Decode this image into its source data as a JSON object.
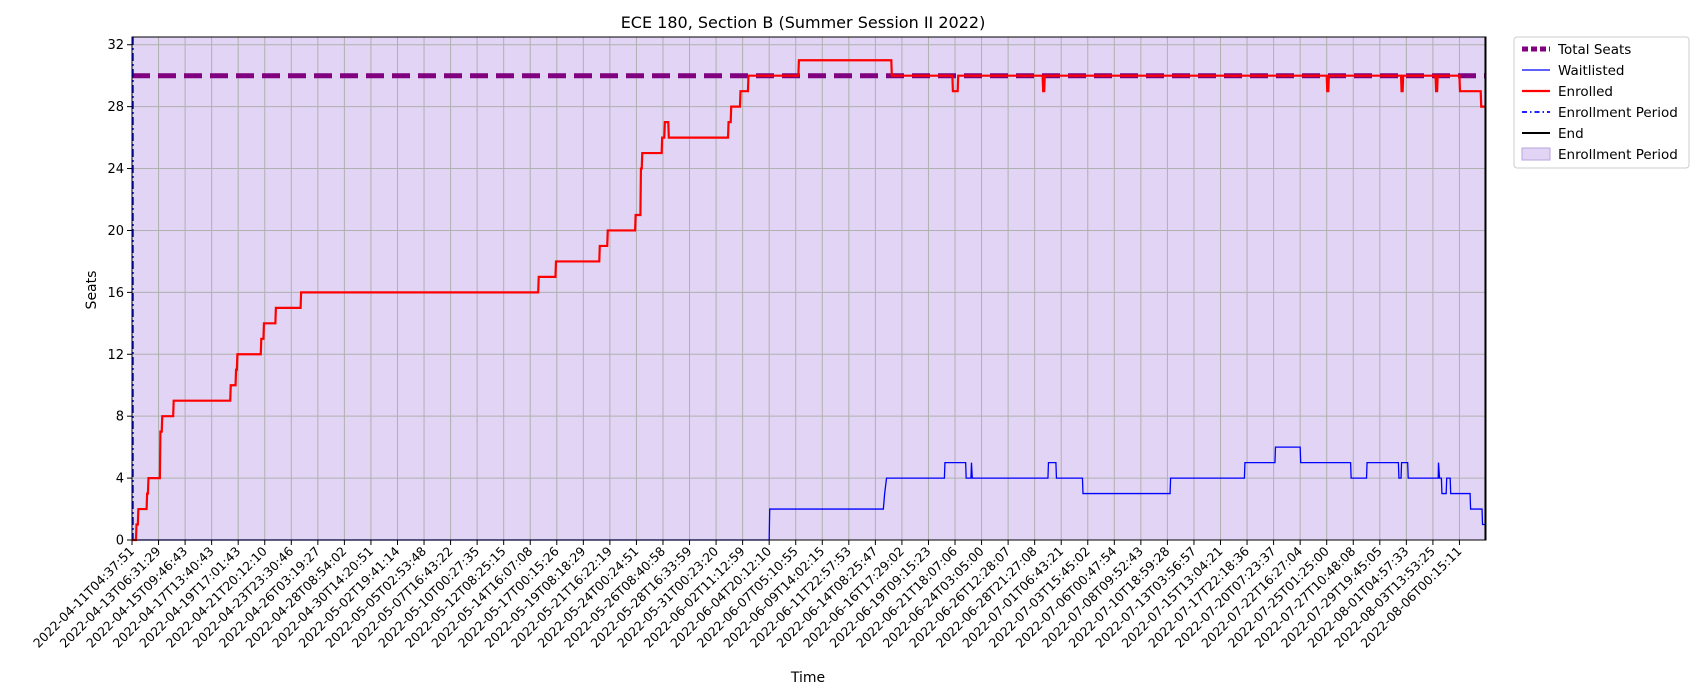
{
  "chart_data": {
    "type": "line",
    "title": "ECE 180, Section B (Summer Session II 2022)",
    "xlabel": "Time",
    "ylabel": "Seats",
    "ylim": [
      0,
      32.5
    ],
    "yticks": [
      0,
      4,
      8,
      12,
      16,
      20,
      24,
      28,
      32
    ],
    "grid": true,
    "legend_position": "outside-top-right",
    "xticks": [
      "2022-04-11T04:37:51",
      "2022-04-13T06:31:29",
      "2022-04-15T09:46:43",
      "2022-04-17T13:40:43",
      "2022-04-19T17:01:43",
      "2022-04-21T20:12:10",
      "2022-04-23T23:30:46",
      "2022-04-26T03:19:27",
      "2022-04-28T08:54:02",
      "2022-04-30T14:20:51",
      "2022-05-02T19:41:14",
      "2022-05-05T02:53:48",
      "2022-05-07T16:43:22",
      "2022-05-10T00:27:35",
      "2022-05-12T08:25:15",
      "2022-05-14T16:07:08",
      "2022-05-17T00:15:26",
      "2022-05-19T08:18:29",
      "2022-05-21T16:22:19",
      "2022-05-24T00:24:51",
      "2022-05-26T08:40:58",
      "2022-05-28T16:33:59",
      "2022-05-31T00:23:20",
      "2022-06-02T11:12:59",
      "2022-06-04T20:12:10",
      "2022-06-07T05:10:55",
      "2022-06-09T14:02:15",
      "2022-06-11T22:57:53",
      "2022-06-14T08:25:47",
      "2022-06-16T17:29:02",
      "2022-06-19T09:15:23",
      "2022-06-21T18:07:06",
      "2022-06-24T03:05:00",
      "2022-06-26T12:28:07",
      "2022-06-28T21:27:08",
      "2022-07-01T06:43:21",
      "2022-07-03T15:45:02",
      "2022-07-06T00:47:54",
      "2022-07-08T09:52:43",
      "2022-07-10T18:59:28",
      "2022-07-13T03:56:57",
      "2022-07-15T13:04:21",
      "2022-07-17T22:18:36",
      "2022-07-20T07:23:37",
      "2022-07-22T16:27:04",
      "2022-07-25T01:25:00",
      "2022-07-27T10:48:08",
      "2022-07-29T19:45:05",
      "2022-08-01T04:57:33",
      "2022-08-03T13:53:25",
      "2022-08-06T00:15:11"
    ],
    "series": [
      {
        "name": "Total Seats",
        "style": "dashed",
        "color": "#800080",
        "value": 30
      },
      {
        "name": "Waitlisted",
        "style": "solid",
        "color": "#0000ff",
        "steps": [
          [
            0,
            0
          ],
          [
            24,
            0
          ],
          [
            24.02,
            2
          ],
          [
            28.3,
            2
          ],
          [
            28.35,
            3
          ],
          [
            28.42,
            4
          ],
          [
            30.6,
            4
          ],
          [
            30.62,
            5
          ],
          [
            31.4,
            5
          ],
          [
            31.42,
            4
          ],
          [
            31.6,
            4
          ],
          [
            31.62,
            5
          ],
          [
            31.65,
            4
          ],
          [
            34.5,
            4
          ],
          [
            34.52,
            5
          ],
          [
            34.8,
            5
          ],
          [
            34.82,
            4
          ],
          [
            35.8,
            4
          ],
          [
            35.82,
            3
          ],
          [
            39.1,
            3
          ],
          [
            39.12,
            4
          ],
          [
            41.9,
            4
          ],
          [
            41.92,
            5
          ],
          [
            43.05,
            5
          ],
          [
            43.07,
            6
          ],
          [
            44.0,
            6
          ],
          [
            44.02,
            5
          ],
          [
            45.9,
            5
          ],
          [
            45.92,
            4
          ],
          [
            46.5,
            4
          ],
          [
            46.52,
            5
          ],
          [
            47.7,
            5
          ],
          [
            47.72,
            4
          ],
          [
            47.8,
            4
          ],
          [
            47.82,
            5
          ],
          [
            48.05,
            5
          ],
          [
            48.07,
            4
          ],
          [
            49.2,
            4
          ],
          [
            49.21,
            5
          ],
          [
            49.25,
            4
          ],
          [
            49.32,
            4
          ],
          [
            49.34,
            3
          ],
          [
            49.5,
            3
          ],
          [
            49.52,
            4
          ],
          [
            49.65,
            4
          ],
          [
            49.67,
            3
          ],
          [
            50.4,
            3
          ],
          [
            50.42,
            2
          ],
          [
            50.85,
            2
          ],
          [
            50.87,
            1
          ],
          [
            50.98,
            1
          ]
        ]
      },
      {
        "name": "Enrolled",
        "style": "solid",
        "color": "#ff0000",
        "steps": [
          [
            0,
            0
          ],
          [
            0.15,
            0
          ],
          [
            0.17,
            1
          ],
          [
            0.22,
            1
          ],
          [
            0.24,
            2
          ],
          [
            0.55,
            2
          ],
          [
            0.57,
            3
          ],
          [
            0.6,
            3
          ],
          [
            0.62,
            4
          ],
          [
            1.05,
            4
          ],
          [
            1.07,
            7
          ],
          [
            1.12,
            7
          ],
          [
            1.14,
            8
          ],
          [
            1.55,
            8
          ],
          [
            1.57,
            9
          ],
          [
            3.7,
            9
          ],
          [
            3.72,
            10
          ],
          [
            3.9,
            10
          ],
          [
            3.92,
            11
          ],
          [
            3.95,
            11
          ],
          [
            3.97,
            12
          ],
          [
            4.85,
            12
          ],
          [
            4.87,
            13
          ],
          [
            4.95,
            13
          ],
          [
            4.97,
            14
          ],
          [
            5.4,
            14
          ],
          [
            5.42,
            15
          ],
          [
            6.35,
            15
          ],
          [
            6.37,
            16
          ],
          [
            15.3,
            16
          ],
          [
            15.32,
            17
          ],
          [
            15.95,
            17
          ],
          [
            15.97,
            18
          ],
          [
            17.6,
            18
          ],
          [
            17.62,
            19
          ],
          [
            17.9,
            19
          ],
          [
            17.92,
            20
          ],
          [
            18.95,
            20
          ],
          [
            18.97,
            21
          ],
          [
            19.15,
            21
          ],
          [
            19.17,
            24
          ],
          [
            19.2,
            24
          ],
          [
            19.22,
            25
          ],
          [
            19.95,
            25
          ],
          [
            19.97,
            26
          ],
          [
            20.05,
            26
          ],
          [
            20.07,
            27
          ],
          [
            20.2,
            27
          ],
          [
            20.22,
            26
          ],
          [
            22.45,
            26
          ],
          [
            22.47,
            27
          ],
          [
            22.55,
            27
          ],
          [
            22.57,
            28
          ],
          [
            22.9,
            28
          ],
          [
            22.92,
            29
          ],
          [
            23.2,
            29
          ],
          [
            23.22,
            30
          ],
          [
            25.1,
            30
          ],
          [
            25.12,
            31
          ],
          [
            28.6,
            31
          ],
          [
            28.62,
            30
          ],
          [
            30.9,
            30
          ],
          [
            30.92,
            29
          ],
          [
            31.1,
            29
          ],
          [
            31.12,
            30
          ],
          [
            34.3,
            30
          ],
          [
            34.32,
            29
          ],
          [
            34.36,
            29
          ],
          [
            34.38,
            30
          ],
          [
            45.0,
            30
          ],
          [
            45.02,
            29
          ],
          [
            45.06,
            29
          ],
          [
            45.08,
            30
          ],
          [
            47.8,
            30
          ],
          [
            47.82,
            29
          ],
          [
            47.86,
            29
          ],
          [
            47.88,
            30
          ],
          [
            49.1,
            30
          ],
          [
            49.12,
            29
          ],
          [
            49.16,
            29
          ],
          [
            49.18,
            30
          ],
          [
            50.0,
            30
          ],
          [
            50.02,
            29
          ],
          [
            50.8,
            29
          ],
          [
            50.82,
            28
          ],
          [
            50.98,
            28
          ]
        ]
      },
      {
        "name": "Enrollment Period",
        "style": "dashdot",
        "color": "#0000ff"
      },
      {
        "name": "End",
        "style": "solid",
        "color": "#000000"
      }
    ],
    "shaded_region": {
      "name": "Enrollment Period",
      "color": "#e1d4f5",
      "x_range_ticks": [
        0,
        50.98
      ]
    },
    "end_marker_tick": 50.98,
    "legend": [
      "Total Seats",
      "Waitlisted",
      "Enrolled",
      "Enrollment Period",
      "End",
      "Enrollment Period"
    ]
  }
}
